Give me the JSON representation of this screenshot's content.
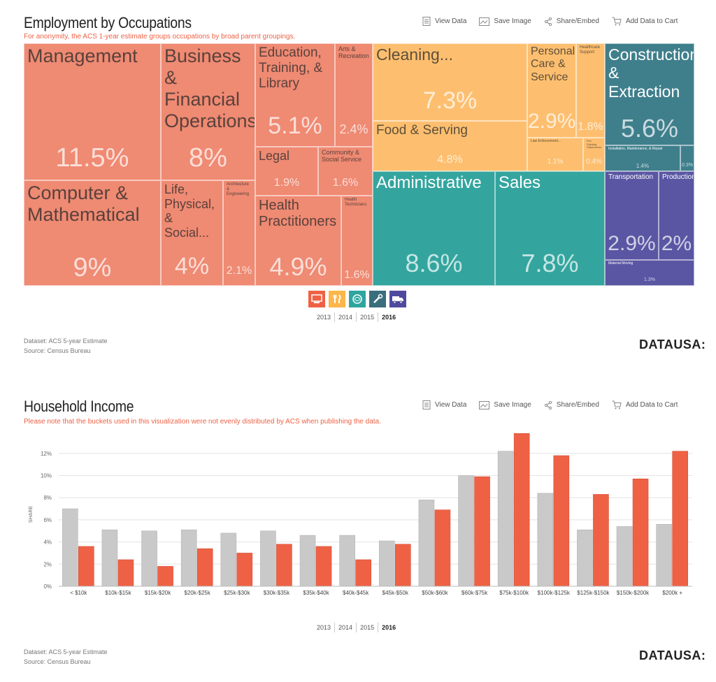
{
  "toolbar": {
    "view_data": "View Data",
    "save_image": "Save Image",
    "share_embed": "Share/Embed",
    "add_to_cart": "Add Data to Cart"
  },
  "occupations": {
    "title": "Employment by Occupations",
    "note": "For anonymity, the ACS 1-year estimate groups occupations by broad parent groupings.",
    "years": [
      "2013",
      "2014",
      "2015",
      "2016"
    ],
    "active_year": "2016",
    "dataset": "Dataset: ACS 5-year Estimate",
    "source": "Source: Census Bureau",
    "logo": "DATAUSA:",
    "group_icons": [
      "computer-icon",
      "food-icon",
      "brain-icon",
      "wrench-icon",
      "truck-icon"
    ],
    "colors": {
      "professional": "#ef8a73",
      "service": "#fdbf6f",
      "office": "#33a59e",
      "construction": "#3f7f8c",
      "transport": "#5a56a3"
    }
  },
  "chart_data": [
    {
      "type": "treemap",
      "title": "Employment by Occupations",
      "cells": [
        {
          "id": "management",
          "label": "Management",
          "share": "11.5%",
          "group": "professional"
        },
        {
          "id": "business",
          "label": "Business &\nFinancial\nOperations",
          "share": "8%",
          "group": "professional"
        },
        {
          "id": "computer",
          "label": "Computer &\nMathematical",
          "share": "9%",
          "group": "professional"
        },
        {
          "id": "life",
          "label": "Life,\nPhysical, &\nSocial...",
          "share": "4%",
          "group": "professional"
        },
        {
          "id": "architecture",
          "label": "Architecture\n&\nEngineering",
          "share": "2.1%",
          "group": "professional"
        },
        {
          "id": "education",
          "label": "Education,\nTraining, &\nLibrary",
          "share": "5.1%",
          "group": "professional"
        },
        {
          "id": "arts",
          "label": "Arts &\nRecreation",
          "share": "2.4%",
          "group": "professional"
        },
        {
          "id": "legal",
          "label": "Legal",
          "share": "1.9%",
          "group": "professional"
        },
        {
          "id": "community",
          "label": "Community &\nSocial Service",
          "share": "1.6%",
          "group": "professional"
        },
        {
          "id": "health_pract",
          "label": "Health\nPractitioners",
          "share": "4.9%",
          "group": "professional"
        },
        {
          "id": "health_tech",
          "label": "Health\nTechnicians",
          "share": "1.6%",
          "group": "professional"
        },
        {
          "id": "cleaning",
          "label": "Cleaning...",
          "share": "7.3%",
          "group": "service"
        },
        {
          "id": "food",
          "label": "Food & Serving",
          "share": "4.8%",
          "group": "service"
        },
        {
          "id": "personal",
          "label": "Personal\nCare &\nService",
          "share": "2.9%",
          "group": "service"
        },
        {
          "id": "healthcare_support",
          "label": "Healthcare\nSupport",
          "share": "1.8%",
          "group": "service"
        },
        {
          "id": "law_enforcement",
          "label": "Law Enforcement...",
          "share": "1.1%",
          "group": "service"
        },
        {
          "id": "firefighting",
          "label": "Fire Fighting\nSupervisors",
          "share": "0.4%",
          "group": "service"
        },
        {
          "id": "administrative",
          "label": "Administrative",
          "share": "8.6%",
          "group": "office"
        },
        {
          "id": "sales",
          "label": "Sales",
          "share": "7.8%",
          "group": "office"
        },
        {
          "id": "construction",
          "label": "Construction\n& Extraction",
          "share": "5.6%",
          "group": "construction"
        },
        {
          "id": "installation",
          "label": "Installation, Maintenance, & Repair",
          "share": "1.4%",
          "group": "construction"
        },
        {
          "id": "farming",
          "label": "",
          "share": "0.3%",
          "group": "construction"
        },
        {
          "id": "transportation",
          "label": "Transportation",
          "share": "2.9%",
          "group": "transport"
        },
        {
          "id": "production",
          "label": "Production",
          "share": "2%",
          "group": "transport"
        },
        {
          "id": "material",
          "label": "Material Moving",
          "share": "1.3%",
          "group": "transport"
        }
      ]
    },
    {
      "type": "bar",
      "title": "Household Income",
      "note": "Please note that the buckets used in this visualization were not evenly distributed by ACS when publishing the data.",
      "ylabel": "SHARE",
      "ylim": [
        0,
        13
      ],
      "yticks": [
        "0%",
        "2%",
        "4%",
        "6%",
        "8%",
        "10%",
        "12%"
      ],
      "categories": [
        "< $10k",
        "$10k-$15k",
        "$15k-$20k",
        "$20k-$25k",
        "$25k-$30k",
        "$30k-$35k",
        "$35k-$40k",
        "$40k-$45k",
        "$45k-$50k",
        "$50k-$60k",
        "$60k-$75k",
        "$75k-$100k",
        "$100k-$125k",
        "$125k-$150k",
        "$150k-$200k",
        "$200k +"
      ],
      "series": [
        {
          "name": "Comparison",
          "color": "#c9c9c9",
          "values": [
            7.0,
            5.1,
            5.0,
            5.1,
            4.8,
            5.0,
            4.6,
            4.6,
            4.1,
            7.8,
            10.0,
            12.2,
            8.4,
            5.1,
            5.4,
            5.6
          ]
        },
        {
          "name": "Selected",
          "color": "#ef6145",
          "values": [
            3.6,
            2.4,
            1.8,
            3.4,
            3.0,
            3.8,
            3.6,
            2.4,
            3.8,
            6.9,
            9.9,
            13.8,
            11.8,
            8.3,
            9.7,
            12.2
          ]
        }
      ],
      "years": [
        "2013",
        "2014",
        "2015",
        "2016"
      ],
      "active_year": "2016",
      "dataset": "Dataset: ACS 5-year Estimate",
      "source": "Source: Census Bureau",
      "logo": "DATAUSA:"
    }
  ]
}
